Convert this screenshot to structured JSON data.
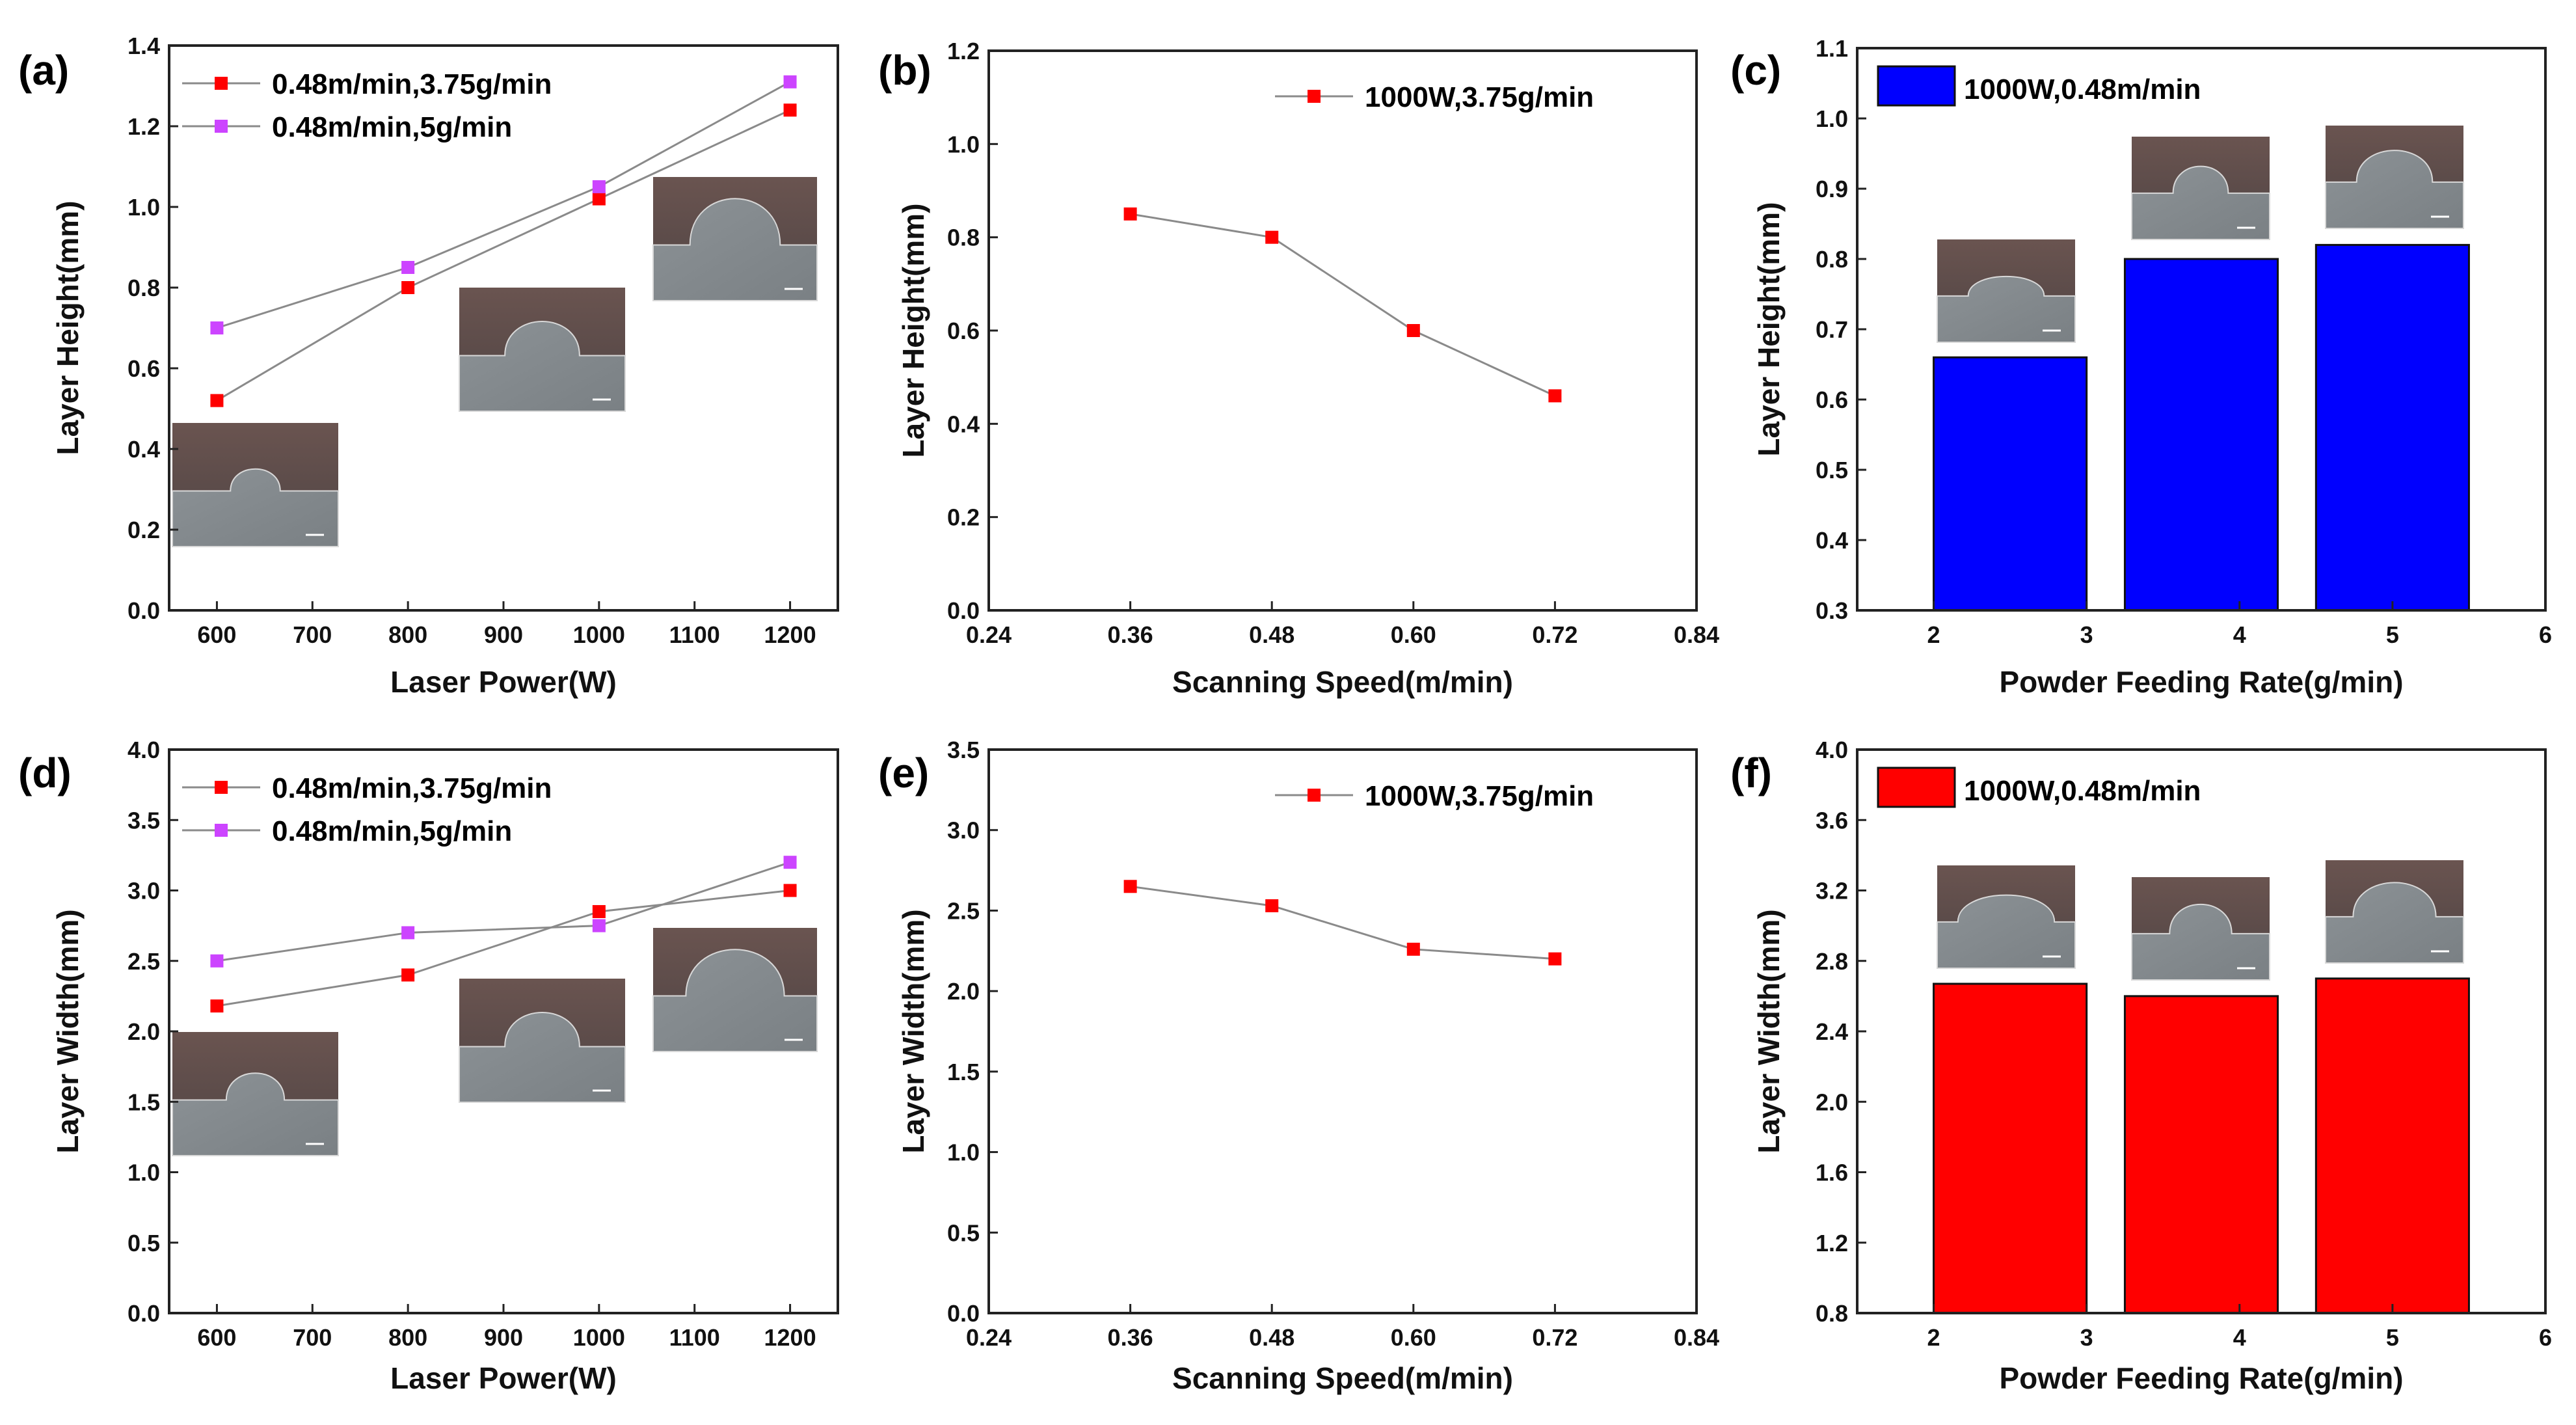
{
  "colors": {
    "red": "#ff0000",
    "magenta": "#cc44ff",
    "blue": "#0000ff",
    "bar_red": "#ff0000",
    "line": "#8a8a8a"
  },
  "chart_data": [
    {
      "panel": "(a)",
      "type": "line",
      "xlabel": "Laser Power(W)",
      "ylabel": "Layer Height(mm)",
      "xlim": [
        550,
        1250
      ],
      "ylim": [
        0.0,
        1.4
      ],
      "xticks": [
        600,
        700,
        800,
        900,
        1000,
        1100,
        1200
      ],
      "xtick_labels": [
        "600",
        "700",
        "800",
        "900",
        "1000",
        "1100",
        "1200"
      ],
      "yticks": [
        0.0,
        0.2,
        0.4,
        0.6,
        0.8,
        1.0,
        1.2,
        1.4
      ],
      "ytick_labels": [
        "0.0",
        "0.2",
        "0.4",
        "0.6",
        "0.8",
        "1.0",
        "1.2",
        "1.4"
      ],
      "legend": "top-left",
      "series": [
        {
          "name": "0.48m/min,3.75g/min",
          "color": "red",
          "x": [
            600,
            800,
            1000,
            1200
          ],
          "values": [
            0.52,
            0.8,
            1.02,
            1.24
          ]
        },
        {
          "name": "0.48m/min,5g/min",
          "color": "magenta",
          "x": [
            600,
            800,
            1000,
            1200
          ],
          "values": [
            0.7,
            0.85,
            1.05,
            1.31
          ]
        }
      ]
    },
    {
      "panel": "(b)",
      "type": "line",
      "xlabel": "Scanning Speed(m/min)",
      "ylabel": "Layer Height(mm)",
      "xlim": [
        0.24,
        0.84
      ],
      "ylim": [
        0.0,
        1.2
      ],
      "xticks": [
        0.24,
        0.36,
        0.48,
        0.6,
        0.72,
        0.84
      ],
      "xtick_labels": [
        "0.24",
        "0.36",
        "0.48",
        "0.60",
        "0.72",
        "0.84"
      ],
      "yticks": [
        0.0,
        0.2,
        0.4,
        0.6,
        0.8,
        1.0,
        1.2
      ],
      "ytick_labels": [
        "0.0",
        "0.2",
        "0.4",
        "0.6",
        "0.8",
        "1.0",
        "1.2"
      ],
      "legend": "top-right",
      "series": [
        {
          "name": "1000W,3.75g/min",
          "color": "red",
          "x": [
            0.36,
            0.48,
            0.6,
            0.72
          ],
          "values": [
            0.85,
            0.8,
            0.6,
            0.46
          ]
        }
      ]
    },
    {
      "panel": "(c)",
      "type": "bar",
      "xlabel": "Powder Feeding Rate(g/min)",
      "ylabel": "Layer Height(mm)",
      "xlim": [
        1.5,
        6.0
      ],
      "ylim": [
        0.3,
        1.1
      ],
      "xticks": [
        2,
        3,
        4,
        5,
        6
      ],
      "xtick_labels": [
        "2",
        "3",
        "4",
        "5",
        "6"
      ],
      "yticks": [
        0.3,
        0.4,
        0.5,
        0.6,
        0.7,
        0.8,
        0.9,
        1.0,
        1.1
      ],
      "ytick_labels": [
        "0.3",
        "0.4",
        "0.5",
        "0.6",
        "0.7",
        "0.8",
        "0.9",
        "1.0",
        "1.1"
      ],
      "legend": "top-left",
      "bar_width": 1.0,
      "series": [
        {
          "name": "1000W,0.48m/min",
          "color": "blue",
          "x": [
            2.5,
            3.75,
            5.0
          ],
          "values": [
            0.66,
            0.8,
            0.82
          ]
        }
      ]
    },
    {
      "panel": "(d)",
      "type": "line",
      "xlabel": "Laser Power(W)",
      "ylabel": "Layer Width(mm)",
      "xlim": [
        550,
        1250
      ],
      "ylim": [
        0.0,
        4.0
      ],
      "xticks": [
        600,
        700,
        800,
        900,
        1000,
        1100,
        1200
      ],
      "xtick_labels": [
        "600",
        "700",
        "800",
        "900",
        "1000",
        "1100",
        "1200"
      ],
      "yticks": [
        0.0,
        0.5,
        1.0,
        1.5,
        2.0,
        2.5,
        3.0,
        3.5,
        4.0
      ],
      "ytick_labels": [
        "0.0",
        "0.5",
        "1.0",
        "1.5",
        "2.0",
        "2.5",
        "3.0",
        "3.5",
        "4.0"
      ],
      "legend": "top-left",
      "series": [
        {
          "name": "0.48m/min,3.75g/min",
          "color": "red",
          "x": [
            600,
            800,
            1000,
            1200
          ],
          "values": [
            2.18,
            2.4,
            2.85,
            3.0
          ]
        },
        {
          "name": "0.48m/min,5g/min",
          "color": "magenta",
          "x": [
            600,
            800,
            1000,
            1200
          ],
          "values": [
            2.5,
            2.7,
            2.75,
            3.2
          ]
        }
      ]
    },
    {
      "panel": "(e)",
      "type": "line",
      "xlabel": "Scanning Speed(m/min)",
      "ylabel": "Layer Width(mm)",
      "xlim": [
        0.24,
        0.84
      ],
      "ylim": [
        0.0,
        3.5
      ],
      "xticks": [
        0.24,
        0.36,
        0.48,
        0.6,
        0.72,
        0.84
      ],
      "xtick_labels": [
        "0.24",
        "0.36",
        "0.48",
        "0.60",
        "0.72",
        "0.84"
      ],
      "yticks": [
        0.0,
        0.5,
        1.0,
        1.5,
        2.0,
        2.5,
        3.0,
        3.5
      ],
      "ytick_labels": [
        "0.0",
        "0.5",
        "1.0",
        "1.5",
        "2.0",
        "2.5",
        "3.0",
        "3.5"
      ],
      "legend": "top-right",
      "series": [
        {
          "name": "1000W,3.75g/min",
          "color": "red",
          "x": [
            0.36,
            0.48,
            0.6,
            0.72
          ],
          "values": [
            2.65,
            2.53,
            2.26,
            2.2
          ]
        }
      ]
    },
    {
      "panel": "(f)",
      "type": "bar",
      "xlabel": "Powder Feeding Rate(g/min)",
      "ylabel": "Layer Width(mm)",
      "xlim": [
        1.5,
        6.0
      ],
      "ylim": [
        0.8,
        4.0
      ],
      "xticks": [
        2,
        3,
        4,
        5,
        6
      ],
      "xtick_labels": [
        "2",
        "3",
        "4",
        "5",
        "6"
      ],
      "yticks": [
        0.8,
        1.2,
        1.6,
        2.0,
        2.4,
        2.8,
        3.2,
        3.6,
        4.0
      ],
      "ytick_labels": [
        "0.8",
        "1.2",
        "1.6",
        "2.0",
        "2.4",
        "2.8",
        "3.2",
        "3.6",
        "4.0"
      ],
      "legend": "top-left",
      "bar_width": 1.0,
      "series": [
        {
          "name": "1000W,0.48m/min",
          "color": "bar_red",
          "x": [
            2.5,
            3.75,
            5.0
          ],
          "values": [
            2.67,
            2.6,
            2.7
          ]
        }
      ]
    }
  ]
}
